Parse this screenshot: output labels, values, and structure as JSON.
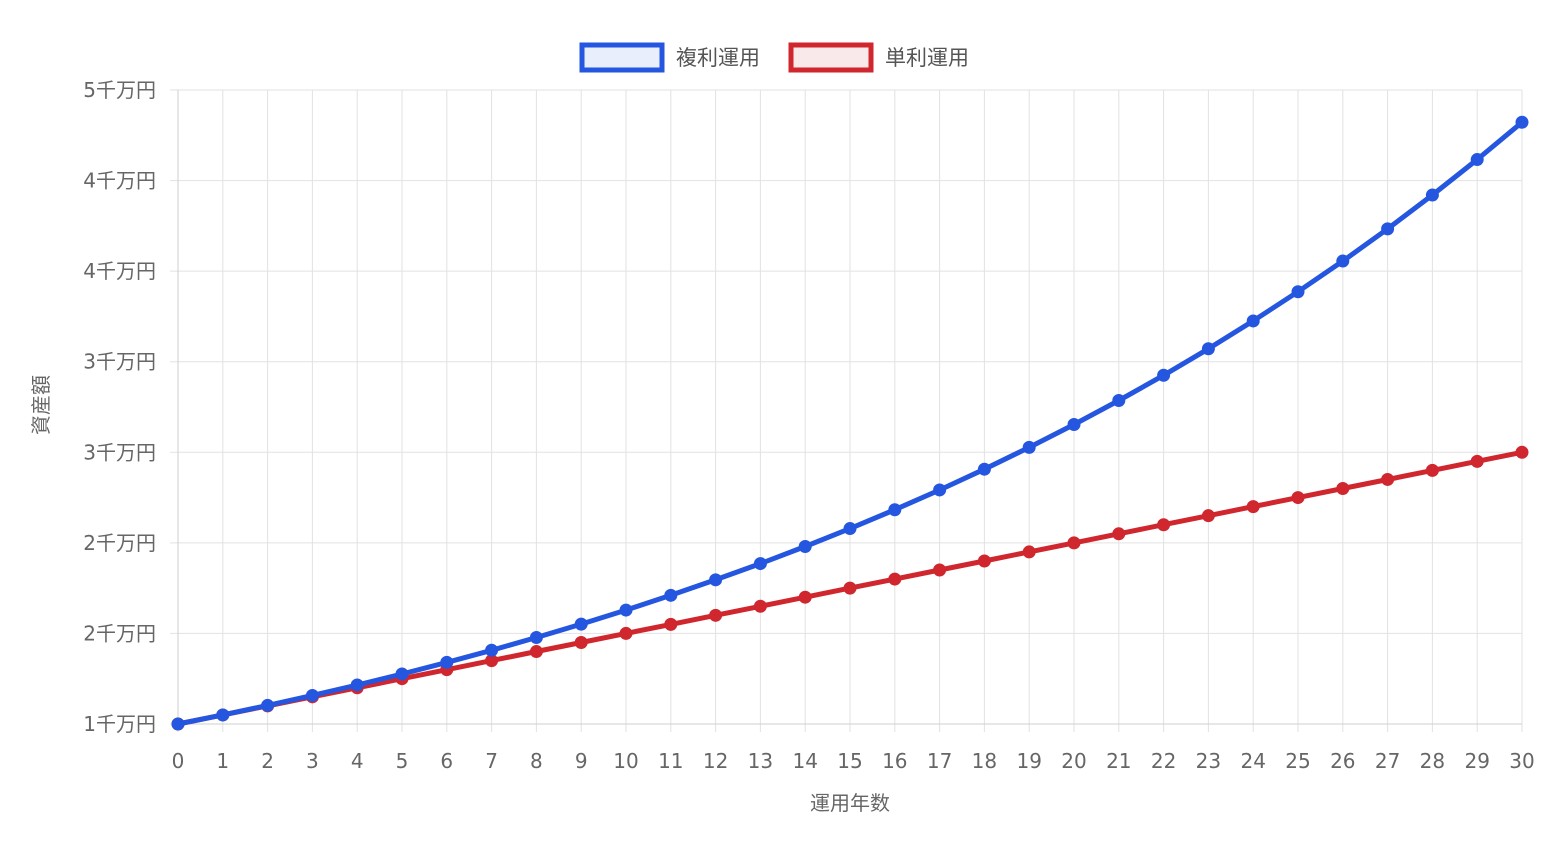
{
  "chart_data": {
    "type": "line",
    "xlabel": "運用年数",
    "ylabel": "資産額",
    "x": [
      0,
      1,
      2,
      3,
      4,
      5,
      6,
      7,
      8,
      9,
      10,
      11,
      12,
      13,
      14,
      15,
      16,
      17,
      18,
      19,
      20,
      21,
      22,
      23,
      24,
      25,
      26,
      27,
      28,
      29,
      30
    ],
    "ylim": [
      10000000,
      45000000
    ],
    "y_ticks": [
      10000000,
      15000000,
      20000000,
      25000000,
      30000000,
      35000000,
      40000000,
      45000000
    ],
    "y_tick_labels": [
      "1千万円",
      "2千万円",
      "2千万円",
      "3千万円",
      "3千万円",
      "4千万円",
      "4千万円",
      "5千万円"
    ],
    "grid": true,
    "legend_position": "top-center",
    "series": [
      {
        "name": "複利運用",
        "color": "#2456e0",
        "values": [
          10000000,
          10500000,
          11025000,
          11576250,
          12155063,
          12762816,
          13400956,
          14071004,
          14774554,
          15513282,
          16288946,
          17103394,
          17958563,
          18856491,
          19799316,
          20789282,
          21828746,
          22920183,
          24066192,
          25269502,
          26532977,
          27859626,
          29252607,
          30715238,
          32250999,
          33863549,
          35556727,
          37334563,
          39201291,
          41161356,
          43219424
        ]
      },
      {
        "name": "単利運用",
        "color": "#d0262e",
        "values": [
          10000000,
          10500000,
          11000000,
          11500000,
          12000000,
          12500000,
          13000000,
          13500000,
          14000000,
          14500000,
          15000000,
          15500000,
          16000000,
          16500000,
          17000000,
          17500000,
          18000000,
          18500000,
          19000000,
          19500000,
          20000000,
          20500000,
          21000000,
          21500000,
          22000000,
          22500000,
          23000000,
          23500000,
          24000000,
          24500000,
          25000000
        ]
      }
    ]
  }
}
